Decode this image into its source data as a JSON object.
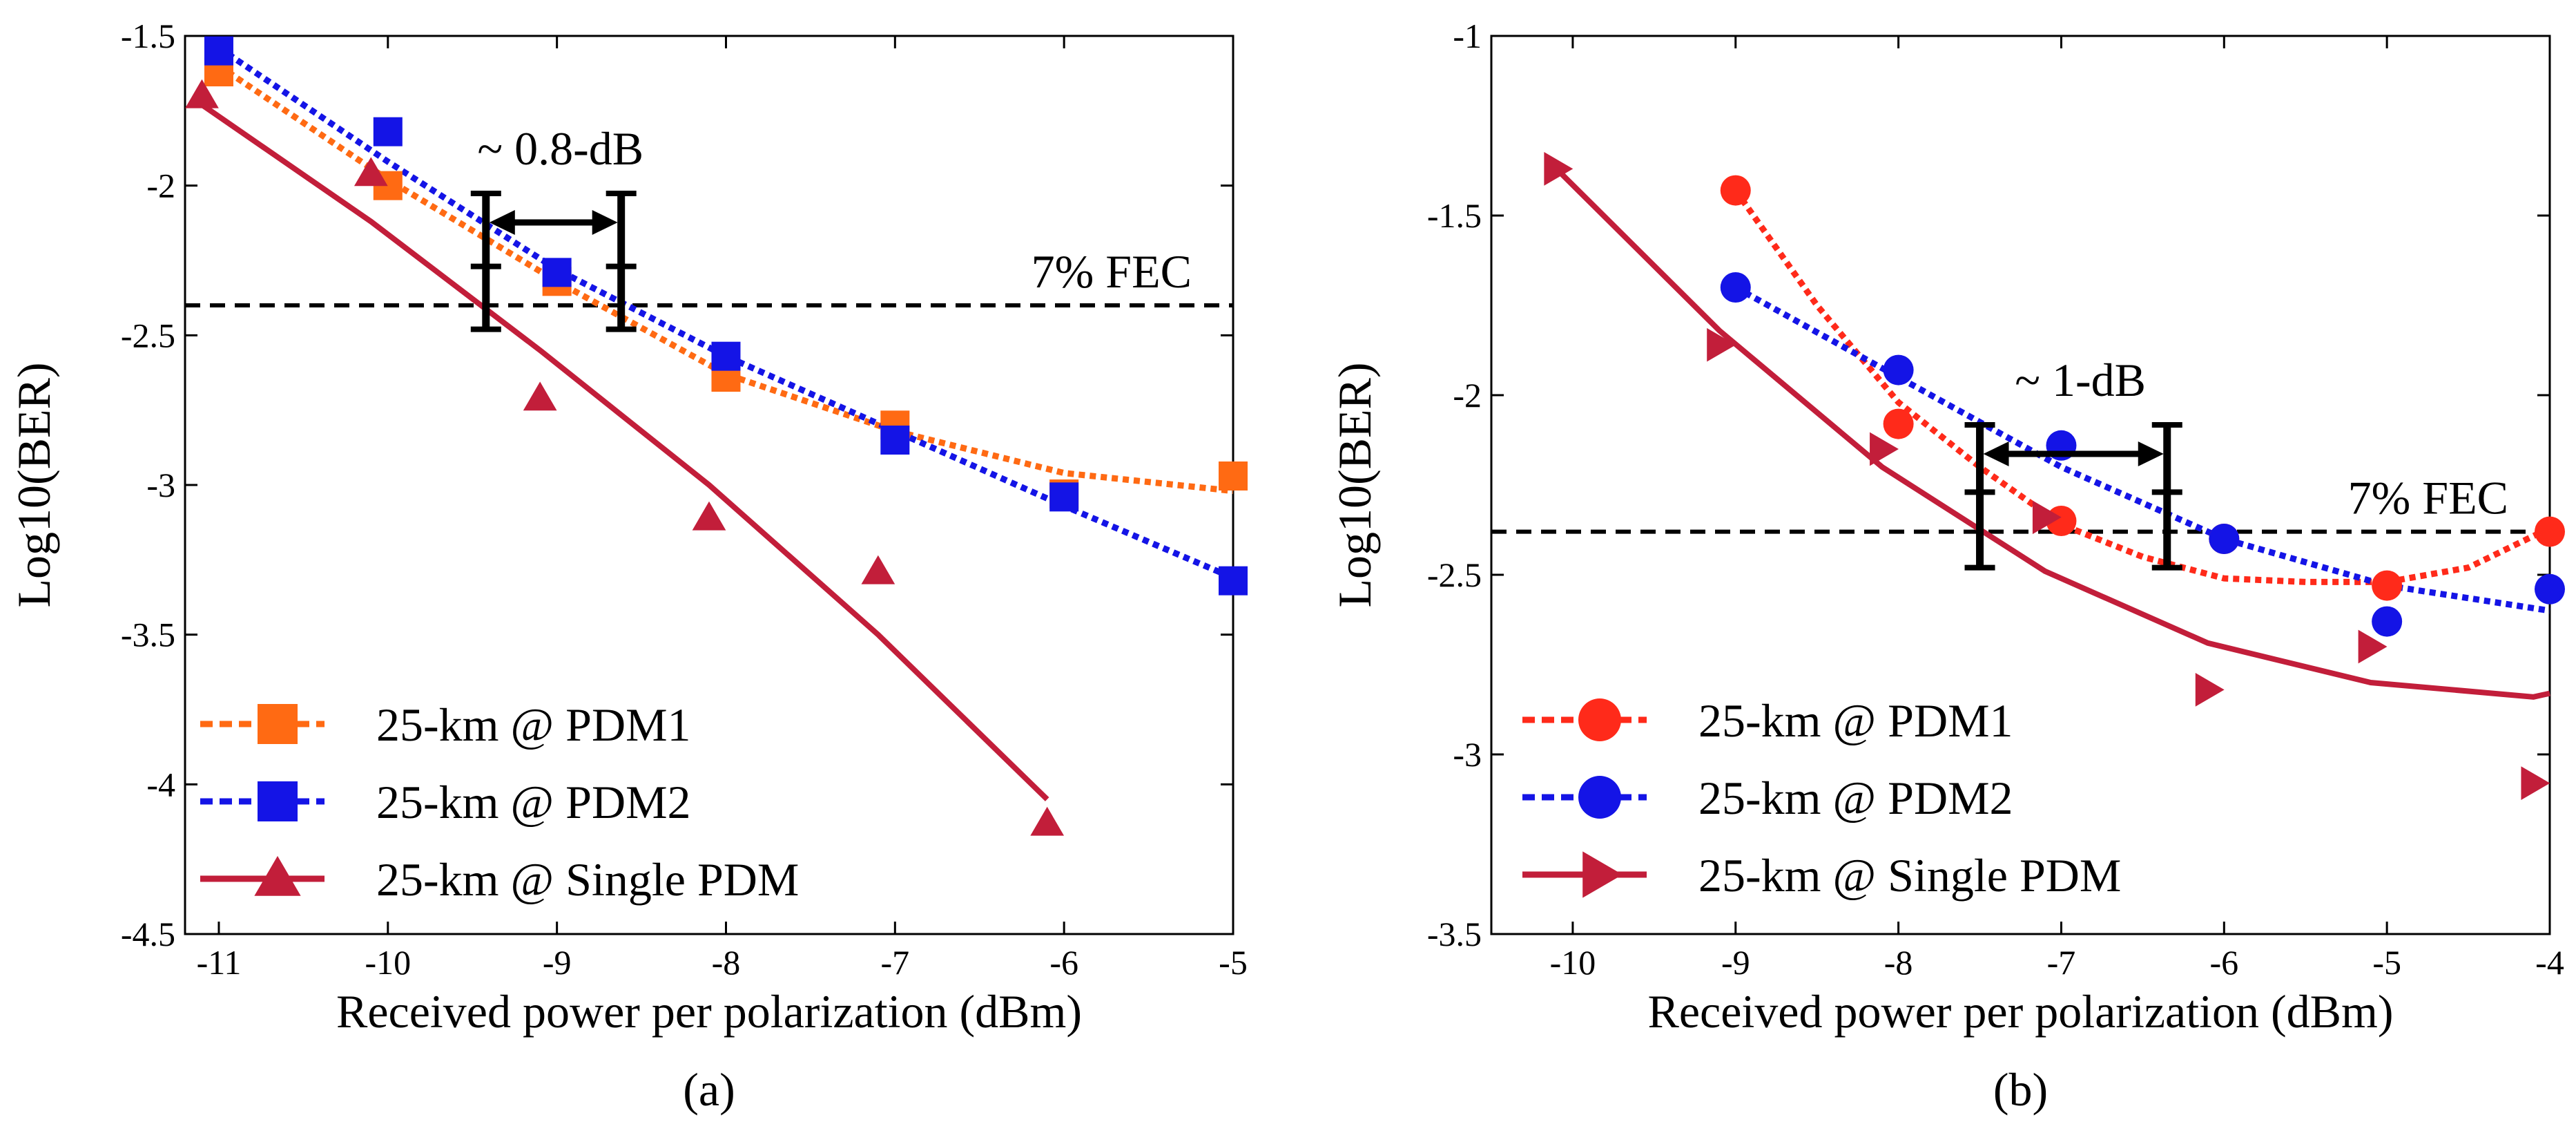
{
  "chart_data": [
    {
      "type": "line",
      "caption": "(a)",
      "xlabel": "Received power per polarization (dBm)",
      "ylabel": "Log10(BER)",
      "xlim": [
        -11.2,
        -5
      ],
      "ylim": [
        -4.5,
        -1.5
      ],
      "xticks": [
        -11,
        -10,
        -9,
        -8,
        -7,
        -6,
        -5
      ],
      "yticks": [
        -1.5,
        -2,
        -2.5,
        -3,
        -3.5,
        -4,
        -4.5
      ],
      "xtick_labels": [
        "-11",
        "-10",
        "-9",
        "-8",
        "-7",
        "-6",
        "-5"
      ],
      "ytick_labels": [
        "-1.5",
        "-2",
        "-2.5",
        "-3",
        "-3.5",
        "-4",
        "-4.5"
      ],
      "fec": {
        "y": -2.4,
        "label": "7% FEC"
      },
      "annotation": {
        "label": "~ 0.8-dB",
        "x1": -9.42,
        "x2": -8.62,
        "y": -2.27
      },
      "series": [
        {
          "name": "25-km @ PDM1",
          "color": "#FF6A13",
          "marker": "square",
          "line": "dotted",
          "x": [
            -11,
            -10,
            -9,
            -8,
            -7,
            -6,
            -5
          ],
          "values": [
            -1.62,
            -2.0,
            -2.32,
            -2.64,
            -2.8,
            -3.03,
            -2.97
          ],
          "fit_x": [
            -11,
            -10,
            -9,
            -8,
            -7,
            -6,
            -5
          ],
          "fit_y": [
            -1.6,
            -1.98,
            -2.32,
            -2.63,
            -2.82,
            -2.96,
            -3.02
          ]
        },
        {
          "name": "25-km @ PDM2",
          "color": "#1414E6",
          "marker": "square",
          "line": "dotted",
          "x": [
            -11,
            -10,
            -9,
            -8,
            -7,
            -6,
            -5
          ],
          "values": [
            -1.55,
            -1.82,
            -2.29,
            -2.57,
            -2.85,
            -3.04,
            -3.32
          ],
          "fit_x": [
            -11,
            -10,
            -9,
            -8,
            -7,
            -6,
            -5
          ],
          "fit_y": [
            -1.54,
            -1.92,
            -2.28,
            -2.57,
            -2.82,
            -3.07,
            -3.31
          ]
        },
        {
          "name": "25-km @ Single PDM",
          "color": "#C21E3A",
          "marker": "triangle-up",
          "line": "solid",
          "x": [
            -11.1,
            -10.1,
            -9.1,
            -8.1,
            -7.1,
            -6.1
          ],
          "values": [
            -1.7,
            -1.96,
            -2.71,
            -3.11,
            -3.29,
            -4.13
          ],
          "fit_x": [
            -11.1,
            -10.1,
            -9.1,
            -8.1,
            -7.1,
            -6.1
          ],
          "fit_y": [
            -1.73,
            -2.12,
            -2.55,
            -3.0,
            -3.5,
            -4.05
          ]
        }
      ]
    },
    {
      "type": "line",
      "caption": "(b)",
      "xlabel": "Received power per polarization (dBm)",
      "ylabel": "Log10(BER)",
      "xlim": [
        -10.5,
        -4
      ],
      "ylim": [
        -3.5,
        -1
      ],
      "xticks": [
        -10,
        -9,
        -8,
        -7,
        -6,
        -5,
        -4
      ],
      "yticks": [
        -1,
        -1.5,
        -2,
        -2.5,
        -3,
        -3.5
      ],
      "xtick_labels": [
        "-10",
        "-9",
        "-8",
        "-7",
        "-6",
        "-5",
        "-4"
      ],
      "ytick_labels": [
        "-1",
        "-1.5",
        "-2",
        "-2.5",
        "-3",
        "-3.5"
      ],
      "fec": {
        "y": -2.38,
        "label": "7% FEC"
      },
      "annotation": {
        "label": "~ 1-dB",
        "x1": -7.5,
        "x2": -6.35,
        "y": -2.27
      },
      "series": [
        {
          "name": "25-km @ PDM1",
          "color": "#FF2A1A",
          "marker": "circle",
          "line": "dotted",
          "x": [
            -9,
            -8,
            -7,
            -6,
            -5,
            -4
          ],
          "values": [
            -1.43,
            -2.08,
            -2.35,
            -2.4,
            -2.53,
            -2.38
          ],
          "fit_x": [
            -9,
            -8.5,
            -8,
            -7.5,
            -7,
            -6.5,
            -6,
            -5.5,
            -5,
            -4.5,
            -4
          ],
          "fit_y": [
            -1.43,
            -1.75,
            -2.02,
            -2.2,
            -2.36,
            -2.45,
            -2.51,
            -2.52,
            -2.52,
            -2.48,
            -2.37
          ]
        },
        {
          "name": "25-km @ PDM2",
          "color": "#1414E6",
          "marker": "circle",
          "line": "dotted",
          "x": [
            -9,
            -8,
            -7,
            -6,
            -5,
            -4
          ],
          "values": [
            -1.7,
            -1.93,
            -2.14,
            -2.4,
            -2.63,
            -2.54
          ],
          "fit_x": [
            -9,
            -8,
            -7,
            -6,
            -5,
            -4
          ],
          "fit_y": [
            -1.7,
            -1.95,
            -2.2,
            -2.4,
            -2.53,
            -2.6
          ]
        },
        {
          "name": "25-km @ Single PDM",
          "color": "#C21E3A",
          "marker": "triangle-right",
          "line": "solid",
          "x": [
            -10.1,
            -9.1,
            -8.1,
            -7.1,
            -6.1,
            -5.1,
            -4.1
          ],
          "values": [
            -1.37,
            -1.86,
            -2.15,
            -2.34,
            -2.82,
            -2.7,
            -3.08
          ],
          "fit_x": [
            -10.1,
            -9.1,
            -8.1,
            -7.1,
            -6.1,
            -5.1,
            -4.1,
            -4
          ],
          "fit_y": [
            -1.37,
            -1.82,
            -2.2,
            -2.49,
            -2.69,
            -2.8,
            -2.84,
            -2.83
          ]
        }
      ]
    }
  ]
}
